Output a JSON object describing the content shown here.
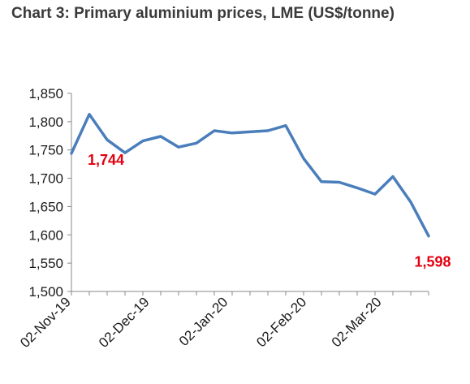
{
  "title": "Chart 3: Primary aluminium prices, LME (US$/tonne)",
  "colors": {
    "line": "#4A7EBB",
    "label": "#E3000F",
    "axis": "#888888"
  },
  "chart_data": {
    "type": "line",
    "title": "Chart 3: Primary aluminium prices, LME (US$/tonne)",
    "xlabel": "",
    "ylabel": "",
    "ylim": [
      1500,
      1850
    ],
    "yticks": [
      "1,500",
      "1,550",
      "1,600",
      "1,650",
      "1,700",
      "1,750",
      "1,800",
      "1,850"
    ],
    "ytick_values": [
      1500,
      1550,
      1600,
      1650,
      1700,
      1750,
      1800,
      1850
    ],
    "x_tick_labels": [
      {
        "label": "02-Nov-19",
        "index": 0
      },
      {
        "label": "02-Dec-19",
        "index": 4.4
      },
      {
        "label": "02-Jan-20",
        "index": 8.8
      },
      {
        "label": "02-Feb-20",
        "index": 13.2
      },
      {
        "label": "02-Mar-20",
        "index": 17.4
      }
    ],
    "grid": false,
    "legend": "none",
    "series": [
      {
        "values": [
          1744,
          1813,
          1768,
          1745,
          1766,
          1774,
          1755,
          1762,
          1784,
          1780,
          1782,
          1784,
          1793,
          1735,
          1694,
          1693,
          1683,
          1672,
          1703,
          1658,
          1598
        ]
      }
    ],
    "annotations": [
      {
        "text": "1,744",
        "index": 0
      },
      {
        "text": "1,598",
        "index": 20
      }
    ]
  }
}
